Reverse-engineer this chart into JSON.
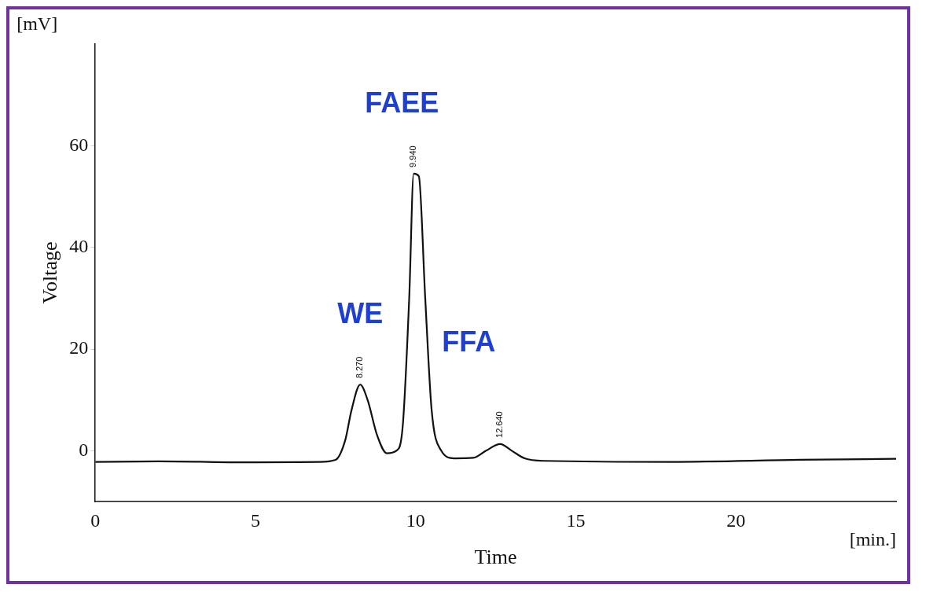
{
  "chart_data": {
    "type": "line",
    "xlabel": "Time",
    "ylabel": "Voltage",
    "x": [
      0,
      2,
      5,
      7,
      7.5,
      7.8,
      8.0,
      8.27,
      8.5,
      8.8,
      9.1,
      9.4,
      9.6,
      9.8,
      9.94,
      10.1,
      10.3,
      10.5,
      10.8,
      11.2,
      11.8,
      12.2,
      12.64,
      13.0,
      13.4,
      14,
      18,
      22,
      25
    ],
    "series": [
      {
        "color": "#111111",
        "values": [
          -2.2,
          -2.1,
          -2.3,
          -2.2,
          -1.8,
          2,
          8,
          13,
          10,
          3,
          -0.5,
          0,
          5,
          30,
          54.5,
          54,
          30,
          8,
          0,
          -1.5,
          -1.4,
          0,
          1.3,
          0,
          -1.5,
          -2,
          -2.2,
          -1.8,
          -1.6
        ]
      }
    ],
    "xlim": [
      0,
      25
    ],
    "xticks": [
      0,
      5,
      10,
      15,
      20
    ],
    "ylim": [
      -10,
      80
    ],
    "yticks": [
      0,
      20,
      40,
      60
    ],
    "grid": false,
    "legend": false,
    "marker": "none",
    "line_style": "solid",
    "annotations": [
      {
        "text": "8.270",
        "x": 8.27,
        "y": 13
      },
      {
        "text": "9.940",
        "x": 9.94,
        "y": 54.5
      },
      {
        "text": "12.640",
        "x": 12.64,
        "y": 1.3
      },
      "WE",
      "FAEE",
      "FFA",
      "[mV]",
      "[min.]"
    ]
  }
}
